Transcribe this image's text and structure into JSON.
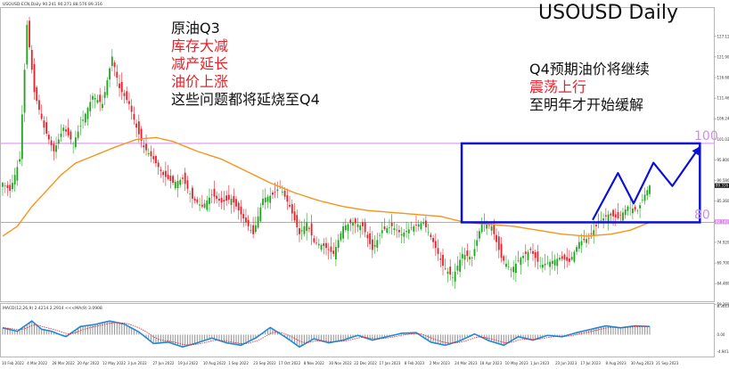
{
  "header": {
    "symbol_line": "USOUSD-ECN,Daily  90.241 90.271 88.576 89.316",
    "big_title": "USOUSD Daily",
    "macd_label": "MACD(12,26,9) 2.4214 2.2914  <<<MA(9) 3.0908"
  },
  "annotations": {
    "left": [
      {
        "text": "原油Q3",
        "color": "#111111"
      },
      {
        "text": "库存大减",
        "color": "#e8202a"
      },
      {
        "text": "减产延长",
        "color": "#e8202a"
      },
      {
        "text": "油价上涨",
        "color": "#e8202a"
      },
      {
        "text": "这些问题都将延烧至Q4",
        "color": "#111111"
      }
    ],
    "right": [
      {
        "text": "Q4预期油价将继续",
        "color": "#111111"
      },
      {
        "text": "震荡上行",
        "color": "#e8202a"
      },
      {
        "text": "至明年才开始缓解",
        "color": "#111111"
      }
    ]
  },
  "colors": {
    "bull": "#20a320",
    "bear": "#e8202a",
    "ma": "#f7941d",
    "level_line": "#d58ce6",
    "box": "#0b10d8",
    "macd_line": "#1f8ad8",
    "signal_line": "#e8202a"
  },
  "chart_data": {
    "type": "candlestick",
    "price_axis": {
      "range": [
        60.0,
        134.3
      ],
      "ticks": [
        "127.120",
        "121.900",
        "116.680",
        "111.460",
        "106.240",
        "101.020",
        "95.800",
        "90.580",
        "85.360",
        "80.140",
        "74.920",
        "69.700",
        "64.480",
        "59.260"
      ],
      "ticks_values": [
        127.12,
        121.9,
        116.68,
        111.46,
        106.24,
        101.02,
        95.8,
        90.58,
        85.36,
        80.14,
        74.92,
        69.7,
        64.48,
        59.26
      ],
      "current_price_label": "89.316",
      "current_price": 89.316,
      "level_label_value": "80.140"
    },
    "macd_axis": {
      "range": [
        -6.4,
        9.0
      ],
      "ticks": [
        "8.3013",
        "0.00",
        "-4.9413"
      ],
      "ticks_values": [
        8.3013,
        0.0,
        -4.9413
      ]
    },
    "date_labels": [
      "10 Feb 2022",
      "4 Mar 2022",
      "28 Mar 2022",
      "20 Apr 2022",
      "12 May 2022",
      "3 Jun 2022",
      "27 Jun 2022",
      "19 Jul 2022",
      "10 Aug 2022",
      "1 Sep 2022",
      "23 Sep 2022",
      "17 Oct 2022",
      "8 Nov 2022",
      "30 Nov 2022",
      "22 Dec 2022",
      "17 Jan 2023",
      "8 Feb 2023",
      "2 Mar 2023",
      "24 Mar 2023",
      "18 Apr 2023",
      "10 May 2023",
      "1 Jun 2023",
      "23 Jun 2023",
      "17 Jul 2023",
      "8 Aug 2023",
      "30 Aug 2023",
      "21 Sep 2023"
    ],
    "levels": [
      {
        "label": "100",
        "value": 100
      },
      {
        "label": "80",
        "value": 80
      }
    ],
    "forecast_box": {
      "x_range": [
        0.6463,
        0.9804
      ],
      "y_range": [
        80,
        100
      ]
    },
    "forecast_path": [
      {
        "x": 0.8306,
        "y": 80.8
      },
      {
        "x": 0.8655,
        "y": 92.5
      },
      {
        "x": 0.8875,
        "y": 84.8
      },
      {
        "x": 0.9152,
        "y": 95.1
      },
      {
        "x": 0.9418,
        "y": 89.2
      },
      {
        "x": 0.9804,
        "y": 99.2
      }
    ],
    "price_keyframes": [
      [
        0,
        90
      ],
      [
        3,
        88
      ],
      [
        7,
        96
      ],
      [
        10,
        130
      ],
      [
        13,
        113
      ],
      [
        17,
        104
      ],
      [
        21,
        98
      ],
      [
        25,
        104
      ],
      [
        29,
        100
      ],
      [
        33,
        106
      ],
      [
        37,
        112
      ],
      [
        41,
        110
      ],
      [
        45,
        122
      ],
      [
        48,
        114
      ],
      [
        52,
        110
      ],
      [
        55,
        104
      ],
      [
        58,
        99
      ],
      [
        62,
        96
      ],
      [
        66,
        92
      ],
      [
        70,
        90
      ],
      [
        74,
        91
      ],
      [
        78,
        86
      ],
      [
        82,
        84
      ],
      [
        86,
        87
      ],
      [
        90,
        85
      ],
      [
        94,
        86
      ],
      [
        98,
        82
      ],
      [
        103,
        77
      ],
      [
        107,
        86
      ],
      [
        111,
        87
      ],
      [
        114,
        89
      ],
      [
        118,
        84
      ],
      [
        122,
        77
      ],
      [
        125,
        80
      ],
      [
        128,
        75
      ],
      [
        132,
        74
      ],
      [
        136,
        72
      ],
      [
        140,
        79
      ],
      [
        144,
        80
      ],
      [
        148,
        79
      ],
      [
        152,
        73
      ],
      [
        156,
        78
      ],
      [
        160,
        79
      ],
      [
        164,
        77
      ],
      [
        169,
        79
      ],
      [
        173,
        80
      ],
      [
        177,
        75
      ],
      [
        181,
        69
      ],
      [
        185,
        66
      ],
      [
        189,
        72
      ],
      [
        193,
        71
      ],
      [
        197,
        80
      ],
      [
        201,
        79
      ],
      [
        205,
        71
      ],
      [
        209,
        68
      ],
      [
        213,
        71
      ],
      [
        217,
        73
      ],
      [
        221,
        69
      ],
      [
        225,
        70
      ],
      [
        229,
        71
      ],
      [
        233,
        70
      ],
      [
        237,
        75
      ],
      [
        241,
        76
      ],
      [
        245,
        80
      ],
      [
        249,
        82
      ],
      [
        253,
        81
      ],
      [
        257,
        84
      ],
      [
        261,
        83
      ],
      [
        264,
        87
      ],
      [
        266,
        89.3
      ]
    ],
    "ma_keyframes": [
      [
        0,
        76.5
      ],
      [
        6,
        79
      ],
      [
        12,
        84
      ],
      [
        18,
        88
      ],
      [
        24,
        92
      ],
      [
        30,
        95
      ],
      [
        38,
        97
      ],
      [
        46,
        99
      ],
      [
        55,
        101
      ],
      [
        63,
        101.5
      ],
      [
        70,
        100.5
      ],
      [
        80,
        98
      ],
      [
        90,
        96
      ],
      [
        100,
        93
      ],
      [
        110,
        90
      ],
      [
        120,
        87.5
      ],
      [
        130,
        85.5
      ],
      [
        140,
        84
      ],
      [
        150,
        83
      ],
      [
        160,
        82.5
      ],
      [
        170,
        82
      ],
      [
        180,
        81.5
      ],
      [
        190,
        80
      ],
      [
        200,
        79.5
      ],
      [
        210,
        79
      ],
      [
        220,
        78
      ],
      [
        230,
        77
      ],
      [
        240,
        76.5
      ],
      [
        250,
        77
      ],
      [
        258,
        78
      ],
      [
        266,
        80
      ]
    ],
    "macd_keyframes": [
      [
        0,
        2.0
      ],
      [
        6,
        1.0
      ],
      [
        12,
        4.0
      ],
      [
        16,
        1.6
      ],
      [
        20,
        1.0
      ],
      [
        26,
        -0.6
      ],
      [
        32,
        2.4
      ],
      [
        38,
        3.0
      ],
      [
        44,
        4.0
      ],
      [
        50,
        3.1
      ],
      [
        56,
        0.8
      ],
      [
        62,
        -2.6
      ],
      [
        68,
        -2.2
      ],
      [
        74,
        -3.6
      ],
      [
        80,
        -2.4
      ],
      [
        86,
        -1.0
      ],
      [
        92,
        -2.4
      ],
      [
        98,
        -3.1
      ],
      [
        104,
        -1.0
      ],
      [
        110,
        2.1
      ],
      [
        116,
        -0.6
      ],
      [
        122,
        -3.6
      ],
      [
        128,
        -1.2
      ],
      [
        134,
        -2.4
      ],
      [
        140,
        -1.6
      ],
      [
        146,
        -0.2
      ],
      [
        152,
        -1.6
      ],
      [
        158,
        -0.6
      ],
      [
        164,
        0.4
      ],
      [
        170,
        0.6
      ],
      [
        176,
        -2.2
      ],
      [
        182,
        -3.1
      ],
      [
        188,
        -1.8
      ],
      [
        194,
        0.2
      ],
      [
        200,
        -1.8
      ],
      [
        206,
        -3.1
      ],
      [
        212,
        -0.6
      ],
      [
        218,
        -1.6
      ],
      [
        224,
        -0.2
      ],
      [
        230,
        -0.6
      ],
      [
        236,
        0.6
      ],
      [
        242,
        1.6
      ],
      [
        248,
        2.6
      ],
      [
        254,
        2.0
      ],
      [
        260,
        2.6
      ],
      [
        266,
        2.4
      ]
    ]
  }
}
